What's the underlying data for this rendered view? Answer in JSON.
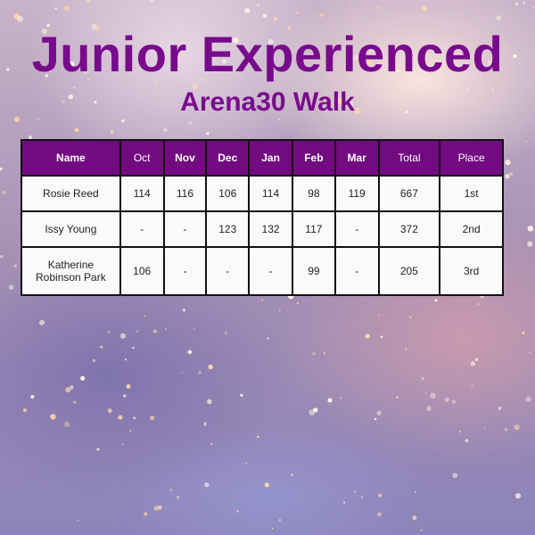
{
  "title": "Junior Experienced",
  "subtitle": "Arena30 Walk",
  "colors": {
    "accent": "#780a8c",
    "header_bg": "#720a80"
  },
  "table": {
    "headers": [
      "Name",
      "Oct",
      "Nov",
      "Dec",
      "Jan",
      "Feb",
      "Mar",
      "Total",
      "Place"
    ],
    "rows": [
      [
        "Rosie Reed",
        "114",
        "116",
        "106",
        "114",
        "98",
        "119",
        "667",
        "1st"
      ],
      [
        "Issy Young",
        "-",
        "-",
        "123",
        "132",
        "117",
        "-",
        "372",
        "2nd"
      ],
      [
        "Katherine Robinson Park",
        "106",
        "-",
        "-",
        "-",
        "99",
        "-",
        "205",
        "3rd"
      ]
    ]
  }
}
